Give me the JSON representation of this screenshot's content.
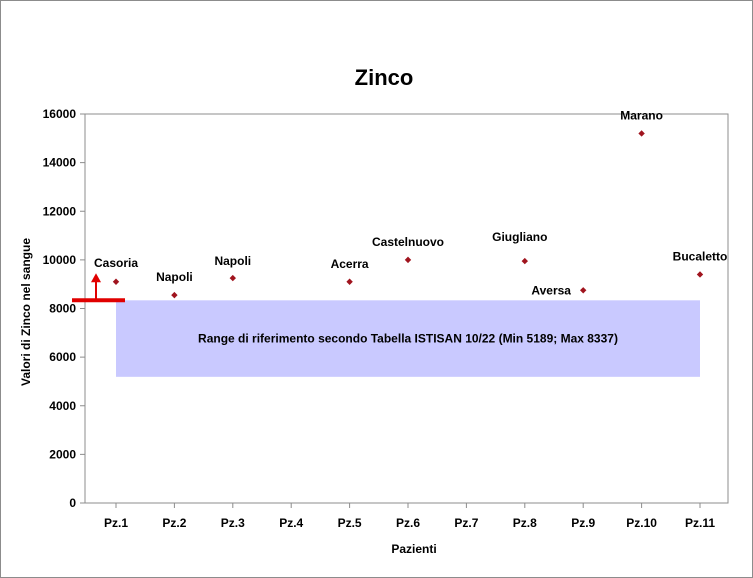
{
  "chart_data": {
    "type": "scatter",
    "title": "Zinco",
    "xlabel": "Pazienti",
    "ylabel": "Valori di Zinco nel sangue",
    "ylim": [
      0,
      16000
    ],
    "yticks": [
      0,
      2000,
      4000,
      6000,
      8000,
      10000,
      12000,
      14000,
      16000
    ],
    "categories": [
      "Pz.1",
      "Pz.2",
      "Pz.3",
      "Pz.4",
      "Pz.5",
      "Pz.6",
      "Pz.7",
      "Pz.8",
      "Pz.9",
      "Pz.10",
      "Pz.11"
    ],
    "points": [
      {
        "x": "Pz.1",
        "y": 9100,
        "label": "Casoria"
      },
      {
        "x": "Pz.2",
        "y": 8550,
        "label": "Napoli"
      },
      {
        "x": "Pz.3",
        "y": 9250,
        "label": "Napoli"
      },
      {
        "x": "Pz.5",
        "y": 9100,
        "label": "Acerra"
      },
      {
        "x": "Pz.6",
        "y": 10000,
        "label": "Castelnuovo"
      },
      {
        "x": "Pz.8",
        "y": 9950,
        "label": "Giugliano"
      },
      {
        "x": "Pz.9",
        "y": 8750,
        "label": "Aversa"
      },
      {
        "x": "Pz.10",
        "y": 15200,
        "label": "Marano"
      },
      {
        "x": "Pz.11",
        "y": 9400,
        "label": "Bucaletto"
      }
    ],
    "reference_range": {
      "min": 5189,
      "max": 8337,
      "label": "Range di riferimento secondo Tabella ISTISAN 10/22  (Min 5189; Max 8337)"
    },
    "grid": false,
    "legend": "none",
    "colors": {
      "marker": "#a0141e",
      "range_fill": "#c9c9ff",
      "threshold": "#e00000",
      "axis": "#8c8c8c"
    }
  }
}
